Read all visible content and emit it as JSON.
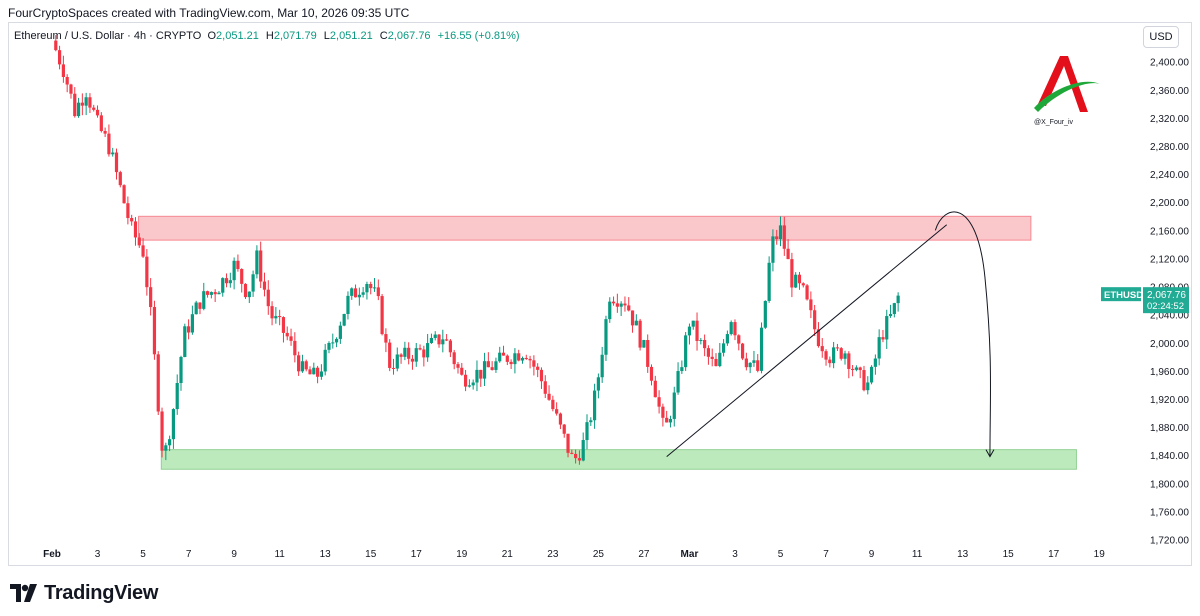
{
  "header": {
    "credit": "FourCryptoSpaces created with TradingView.com, Mar 10, 2026 09:35 UTC"
  },
  "legend": {
    "symbol": "Ethereum / U.S. Dollar",
    "interval": "4h",
    "exchange": "CRYPTO",
    "open": "2,051.21",
    "high": "2,071.79",
    "low": "2,051.21",
    "close": "2,067.76",
    "change": "+16.55 (+0.81%)"
  },
  "currency": "USD",
  "watermark_text": "@X_Four_iv",
  "footer": {
    "brand": "TradingView"
  },
  "colors": {
    "up": "#089981",
    "down": "#f23645",
    "resistance_zone": "#f7a1a8",
    "support_zone": "#8fdc8f",
    "price_tag": "#22ab94"
  },
  "chart_data": {
    "type": "candlestick",
    "symbol": "Ethereum / U.S. Dollar",
    "interval": "4h",
    "x_tick_labels": [
      "Feb",
      "3",
      "5",
      "7",
      "9",
      "11",
      "13",
      "15",
      "17",
      "19",
      "21",
      "23",
      "25",
      "27",
      "Mar",
      "3",
      "5",
      "7",
      "9",
      "11",
      "13",
      "15",
      "17",
      "19"
    ],
    "y_tick_labels": [
      "2,400.00",
      "2,360.00",
      "2,320.00",
      "2,280.00",
      "2,240.00",
      "2,200.00",
      "2,160.00",
      "2,120.00",
      "2,080.00",
      "2,040.00",
      "2,000.00",
      "1,960.00",
      "1,920.00",
      "1,880.00",
      "1,840.00",
      "1,800.00",
      "1,760.00",
      "1,720.00"
    ],
    "ylim": [
      1708,
      2428
    ],
    "xlim": [
      "Feb 1",
      "Mar 20"
    ],
    "close_path": [
      {
        "x": "Feb 1",
        "y": 2430
      },
      {
        "x": "Feb 1.5",
        "y": 2390
      },
      {
        "x": "Feb 2",
        "y": 2330
      },
      {
        "x": "Feb 2.5",
        "y": 2360
      },
      {
        "x": "Feb 3",
        "y": 2310
      },
      {
        "x": "Feb 3.5",
        "y": 2280
      },
      {
        "x": "Feb 4",
        "y": 2220
      },
      {
        "x": "Feb 4.5",
        "y": 2160
      },
      {
        "x": "Feb 5",
        "y": 2130
      },
      {
        "x": "Feb 5.3",
        "y": 2050
      },
      {
        "x": "Feb 5.6",
        "y": 1940
      },
      {
        "x": "Feb 5.9",
        "y": 1830
      },
      {
        "x": "Feb 6.3",
        "y": 1900
      },
      {
        "x": "Feb 6.8",
        "y": 2010
      },
      {
        "x": "Feb 7.5",
        "y": 2060
      },
      {
        "x": "Feb 8.3",
        "y": 2080
      },
      {
        "x": "Feb 9",
        "y": 2110
      },
      {
        "x": "Feb 9.6",
        "y": 2070
      },
      {
        "x": "Feb 10",
        "y": 2120
      },
      {
        "x": "Feb 10.6",
        "y": 2040
      },
      {
        "x": "Feb 11.3",
        "y": 2010
      },
      {
        "x": "Feb 12",
        "y": 1960
      },
      {
        "x": "Feb 12.6",
        "y": 1950
      },
      {
        "x": "Feb 13.3",
        "y": 2000
      },
      {
        "x": "Feb 14",
        "y": 2060
      },
      {
        "x": "Feb 14.8",
        "y": 2090
      },
      {
        "x": "Feb 15.3",
        "y": 2060
      },
      {
        "x": "Feb 15.8",
        "y": 1970
      },
      {
        "x": "Feb 16.5",
        "y": 1980
      },
      {
        "x": "Feb 17.4",
        "y": 1990
      },
      {
        "x": "Feb 18.2",
        "y": 2010
      },
      {
        "x": "Feb 19",
        "y": 1950
      },
      {
        "x": "Feb 20",
        "y": 1960
      },
      {
        "x": "Feb 21",
        "y": 1980
      },
      {
        "x": "Feb 21.8",
        "y": 1990
      },
      {
        "x": "Feb 22.6",
        "y": 1940
      },
      {
        "x": "Feb 23.3",
        "y": 1880
      },
      {
        "x": "Feb 23.9",
        "y": 1830
      },
      {
        "x": "Feb 24.4",
        "y": 1860
      },
      {
        "x": "Feb 24.9",
        "y": 1930
      },
      {
        "x": "Feb 25.5",
        "y": 2070
      },
      {
        "x": "Feb 26.2",
        "y": 2060
      },
      {
        "x": "Feb 26.8",
        "y": 2010
      },
      {
        "x": "Feb 27.4",
        "y": 1950
      },
      {
        "x": "Feb 27.9",
        "y": 1870
      },
      {
        "x": "Feb 28.4",
        "y": 1930
      },
      {
        "x": "Mar 1",
        "y": 2030
      },
      {
        "x": "Mar 1.6",
        "y": 1990
      },
      {
        "x": "Mar 2.2",
        "y": 1960
      },
      {
        "x": "Mar 2.8",
        "y": 2040
      },
      {
        "x": "Mar 3.4",
        "y": 1980
      },
      {
        "x": "Mar 4",
        "y": 1960
      },
      {
        "x": "Mar 4.6",
        "y": 2140
      },
      {
        "x": "Mar 5",
        "y": 2160
      },
      {
        "x": "Mar 5.5",
        "y": 2090
      },
      {
        "x": "Mar 6",
        "y": 2070
      },
      {
        "x": "Mar 6.6",
        "y": 2010
      },
      {
        "x": "Mar 7.2",
        "y": 1980
      },
      {
        "x": "Mar 7.8",
        "y": 1990
      },
      {
        "x": "Mar 8.4",
        "y": 1950
      },
      {
        "x": "Mar 8.9",
        "y": 1940
      },
      {
        "x": "Mar 9.4",
        "y": 2010
      },
      {
        "x": "Mar 9.9",
        "y": 2040
      },
      {
        "x": "Mar 10.2",
        "y": 2068
      }
    ],
    "zones": [
      {
        "name": "resistance",
        "y_from": 2146,
        "y_to": 2180,
        "x_from": "Feb 4.8",
        "x_to": "Mar 16"
      },
      {
        "name": "support",
        "y_from": 1820,
        "y_to": 1848,
        "x_from": "Feb 5.8",
        "x_to": "Mar 18"
      }
    ],
    "trendline": {
      "x1": "Feb 28",
      "y1": 1838,
      "x2": "Mar 12.3",
      "y2": 2168
    },
    "projection_arc": {
      "x_start": "Mar 11.8",
      "y_start": 2160,
      "x_peak": "Mar 12.4",
      "y_peak": 2178,
      "x_end": "Mar 14.2",
      "y_end": 1838
    },
    "last_price": {
      "label": "ETHUSD",
      "price": "2,067.76",
      "countdown": "02:24:52"
    }
  }
}
